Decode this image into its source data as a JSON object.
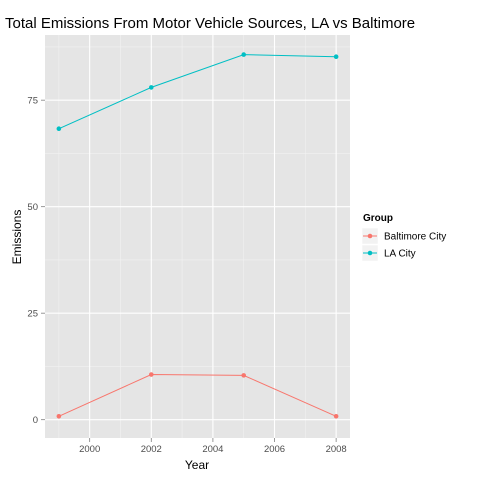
{
  "chart_data": {
    "type": "line",
    "title": "Total Emissions From Motor Vehicle Sources, LA vs Baltimore",
    "xlabel": "Year",
    "ylabel": "Emissions",
    "x": [
      1999,
      2002,
      2005,
      2008
    ],
    "xlim": [
      1998.55,
      2008.45
    ],
    "ylim": [
      -4.3,
      90.3
    ],
    "x_ticks": [
      2000,
      2002,
      2004,
      2006,
      2008
    ],
    "y_ticks": [
      0,
      25,
      50,
      75
    ],
    "grid": true,
    "legend": {
      "title": "Group",
      "position": "right"
    },
    "series": [
      {
        "name": "Baltimore City",
        "color": "#F8766D",
        "values": [
          0.8,
          10.6,
          10.4,
          0.8
        ]
      },
      {
        "name": "LA City",
        "color": "#00BFC4",
        "values": [
          68.3,
          78.0,
          85.7,
          85.2
        ]
      }
    ]
  }
}
